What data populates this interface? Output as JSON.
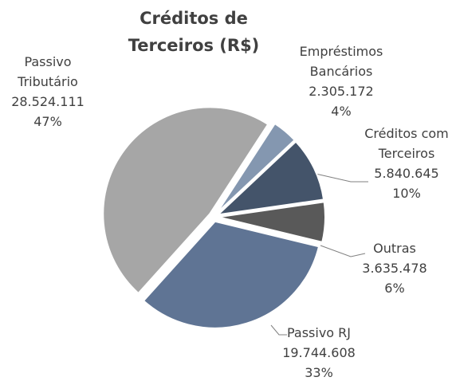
{
  "chart_data": {
    "type": "pie",
    "title": "Créditos de Terceiros (R$)",
    "categories": [
      "Empréstimos Bancários",
      "Créditos com Terceiros",
      "Outras",
      "Passivo RJ",
      "Passivo Tributário"
    ],
    "values": [
      2305172,
      5840645,
      3635478,
      19744608,
      28524111
    ],
    "value_labels": [
      "2.305.172",
      "5.840.645",
      "3.635.478",
      "19.744.608",
      "28.524.111"
    ],
    "percentages": [
      4,
      10,
      6,
      33,
      47
    ],
    "percentage_labels": [
      "4%",
      "10%",
      "6%",
      "33%",
      "47%"
    ],
    "colors": [
      "#8497b0",
      "#44546a",
      "#595959",
      "#5f7494",
      "#a6a6a6"
    ]
  }
}
